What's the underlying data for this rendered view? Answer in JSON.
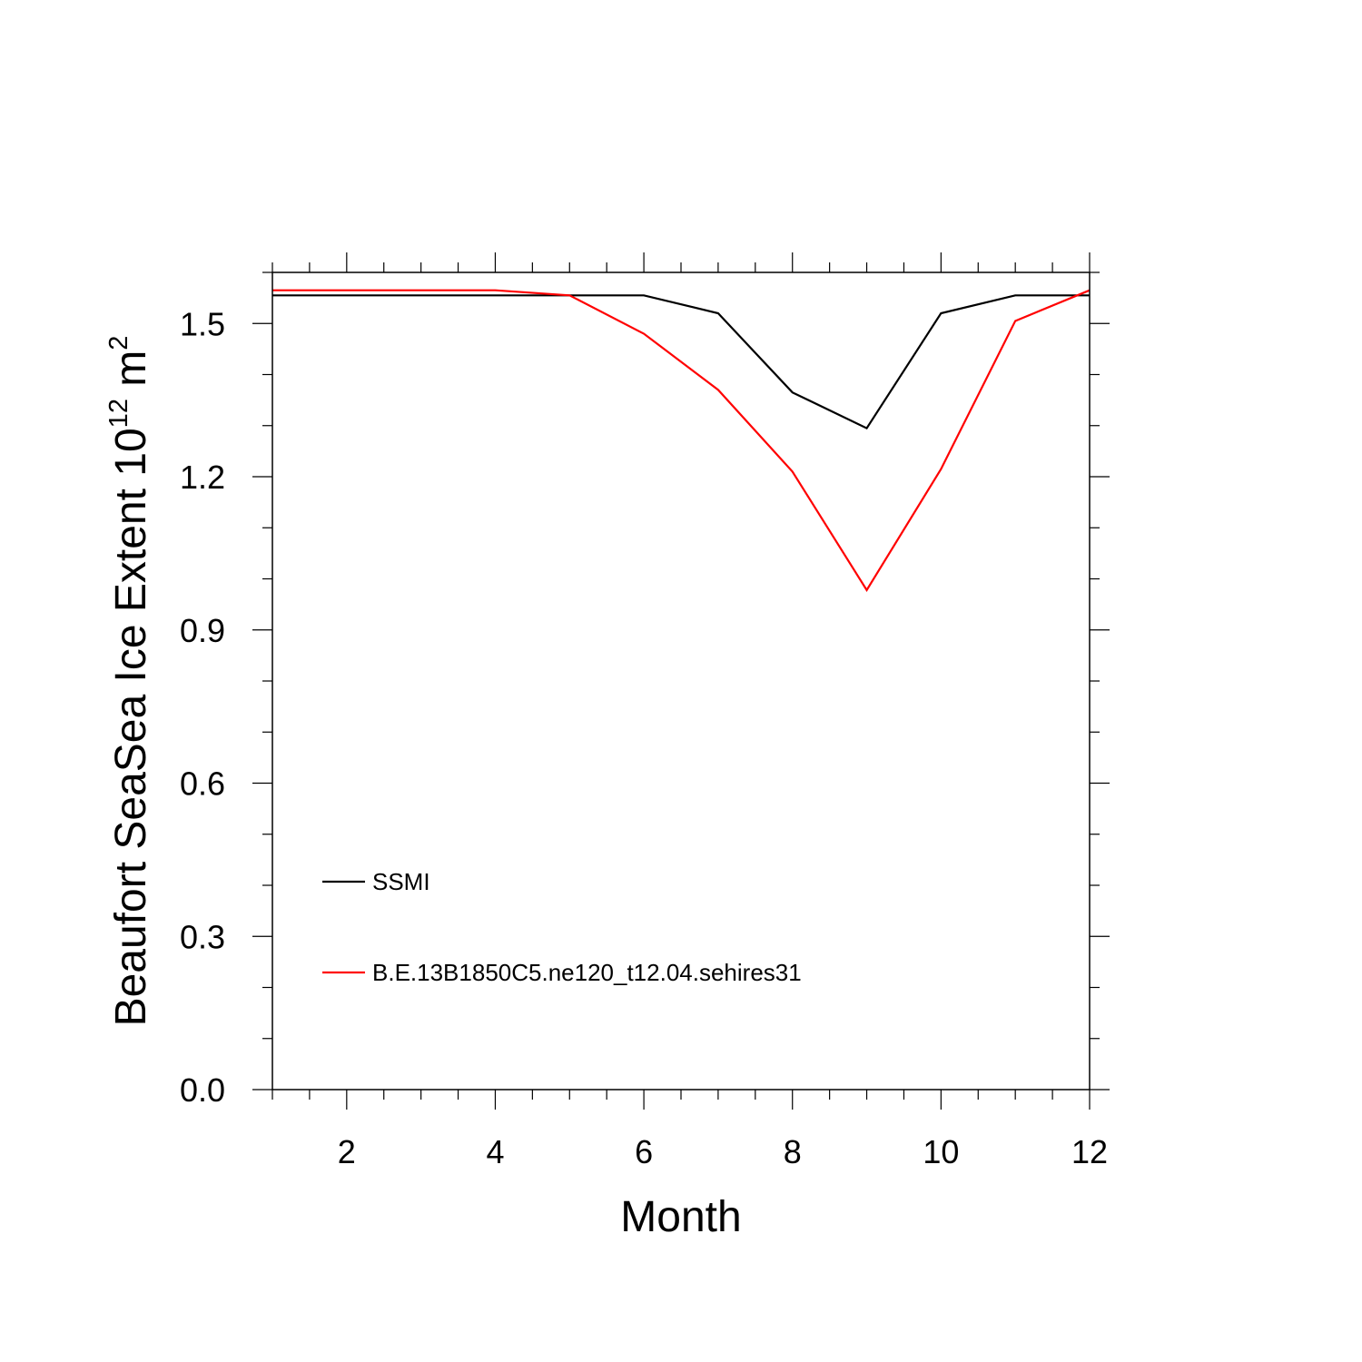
{
  "chart_data": {
    "type": "line",
    "title": "",
    "xlabel": "Month",
    "ylabel": {
      "prefix": "Beaufort SeaSea Ice Extent 10",
      "exponent": "12",
      "unit": " m",
      "unit_exponent": "2"
    },
    "xlim": [
      1,
      12
    ],
    "ylim": [
      0,
      1.6
    ],
    "x_major_ticks": [
      2,
      4,
      6,
      8,
      10,
      12
    ],
    "x_tick_labels": [
      "2",
      "4",
      "6",
      "8",
      "10",
      "12"
    ],
    "x_minor_step": 0.5,
    "y_major_ticks": [
      0,
      0.3,
      0.6,
      0.9,
      1.2,
      1.5
    ],
    "y_tick_labels": [
      "0.0",
      "0.3",
      "0.6",
      "0.9",
      "1.2",
      "1.5"
    ],
    "y_minor_step": 0.1,
    "grid": false,
    "legend_position": "lower-left",
    "x": [
      1,
      2,
      3,
      4,
      5,
      6,
      7,
      8,
      9,
      10,
      11,
      12
    ],
    "series": [
      {
        "name": "SSMI",
        "color": "#000000",
        "values": [
          1.555,
          1.555,
          1.555,
          1.555,
          1.555,
          1.555,
          1.52,
          1.365,
          1.295,
          1.52,
          1.555,
          1.555
        ]
      },
      {
        "name": "B.E.13B1850C5.ne120_t12.04.sehires31",
        "color": "#ff0000",
        "values": [
          1.565,
          1.565,
          1.565,
          1.565,
          1.555,
          1.48,
          1.37,
          1.21,
          0.978,
          1.215,
          1.505,
          1.565
        ]
      }
    ]
  }
}
